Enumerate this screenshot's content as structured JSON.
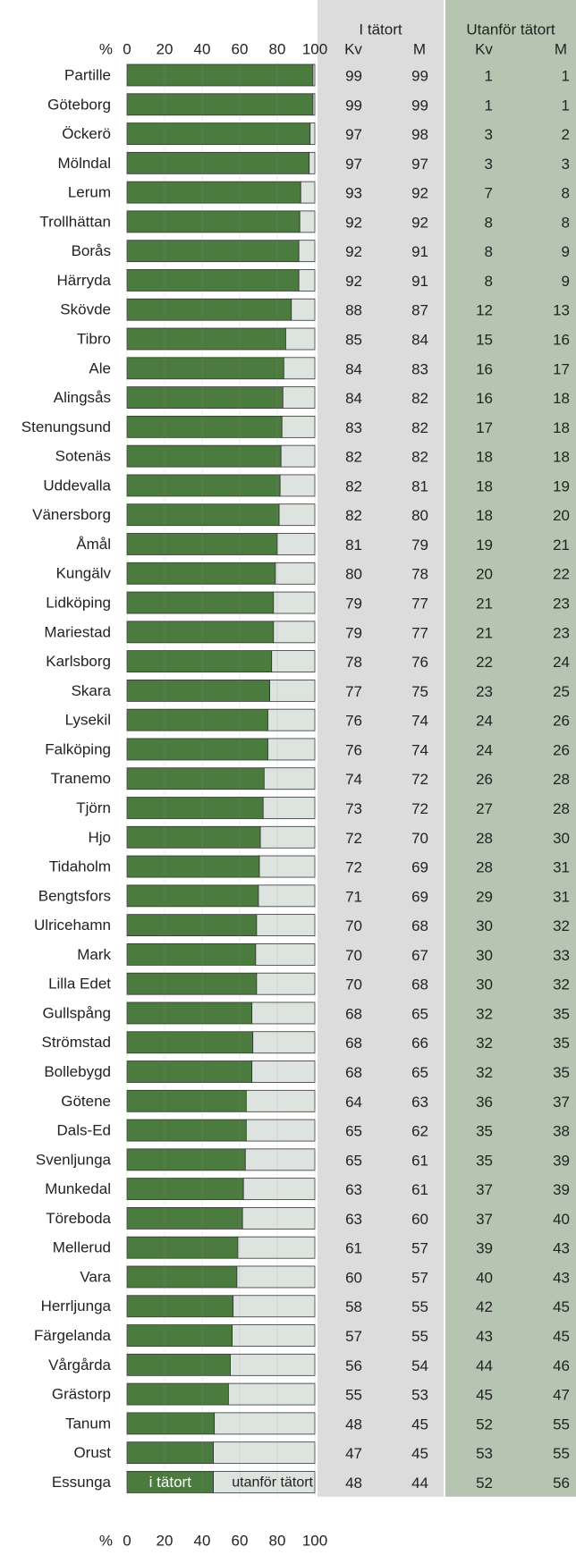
{
  "chart_data": {
    "type": "stacked_barh",
    "x_unit": "%",
    "categories": [
      "Partille",
      "Göteborg",
      "Öckerö",
      "Mölndal",
      "Lerum",
      "Trollhättan",
      "Borås",
      "Härryda",
      "Skövde",
      "Tibro",
      "Ale",
      "Alingsås",
      "Stenungsund",
      "Sotenäs",
      "Uddevalla",
      "Vänersborg",
      "Åmål",
      "Kungälv",
      "Lidköping",
      "Mariestad",
      "Karlsborg",
      "Skara",
      "Lysekil",
      "Falköping",
      "Tranemo",
      "Tjörn",
      "Hjo",
      "Tidaholm",
      "Bengtsfors",
      "Ulricehamn",
      "Mark",
      "Lilla Edet",
      "Gullspång",
      "Strömstad",
      "Bollebygd",
      "Götene",
      "Dals-Ed",
      "Svenljunga",
      "Munkedal",
      "Töreboda",
      "Mellerud",
      "Vara",
      "Herrljunga",
      "Färgelanda",
      "Vårgårda",
      "Grästorp",
      "Tanum",
      "Orust",
      "Essunga"
    ],
    "series": [
      {
        "name": "i tätort",
        "color": "#4b7b3f",
        "values": [
          99,
          99,
          97.5,
          97,
          92.5,
          92,
          91.5,
          91.5,
          87.5,
          84.5,
          83.5,
          83,
          82.5,
          82,
          81.5,
          81,
          80,
          79,
          78,
          78,
          77,
          76,
          75,
          75,
          73,
          72.5,
          71,
          70.5,
          70,
          69,
          68.5,
          69,
          66.5,
          67,
          66.5,
          63.5,
          63.5,
          63,
          62,
          61.5,
          59,
          58.5,
          56.5,
          56,
          55,
          54,
          46.5,
          46,
          46
        ]
      },
      {
        "name": "utanför tätort",
        "color": "#dde3de",
        "values": [
          1,
          1,
          2.5,
          3,
          7.5,
          8,
          8.5,
          8.5,
          12.5,
          15.5,
          16.5,
          17,
          17.5,
          18,
          18.5,
          19,
          20,
          21,
          22,
          22,
          23,
          24,
          25,
          25,
          27,
          27.5,
          29,
          29.5,
          30,
          31,
          31.5,
          31,
          33.5,
          33,
          33.5,
          36.5,
          36.5,
          37,
          38,
          38.5,
          41,
          41.5,
          43.5,
          44,
          45,
          46,
          53.5,
          54,
          54
        ]
      }
    ],
    "xlim": [
      0,
      100
    ],
    "xticks": [
      0,
      20,
      40,
      60,
      80,
      100
    ],
    "column_groups": [
      {
        "name": "I tätort",
        "color": "#dcdcdc",
        "columns": [
          {
            "name": "Kv",
            "values": [
              99,
              99,
              97,
              97,
              93,
              92,
              92,
              92,
              88,
              85,
              84,
              84,
              83,
              82,
              82,
              82,
              81,
              80,
              79,
              79,
              78,
              77,
              76,
              76,
              74,
              73,
              72,
              72,
              71,
              70,
              70,
              70,
              68,
              68,
              68,
              64,
              65,
              65,
              63,
              63,
              61,
              60,
              58,
              57,
              56,
              55,
              48,
              47,
              48
            ]
          },
          {
            "name": "M",
            "values": [
              99,
              99,
              98,
              97,
              92,
              92,
              91,
              91,
              87,
              84,
              83,
              82,
              82,
              82,
              81,
              80,
              79,
              78,
              77,
              77,
              76,
              75,
              74,
              74,
              72,
              72,
              70,
              69,
              69,
              68,
              67,
              68,
              65,
              66,
              65,
              63,
              62,
              61,
              61,
              60,
              57,
              57,
              55,
              55,
              54,
              53,
              45,
              45,
              44
            ]
          }
        ]
      },
      {
        "name": "Utanför tätort",
        "color": "#b6c5b2",
        "columns": [
          {
            "name": "Kv",
            "values": [
              1,
              1,
              3,
              3,
              7,
              8,
              8,
              8,
              12,
              15,
              16,
              16,
              17,
              18,
              18,
              18,
              19,
              20,
              21,
              21,
              22,
              23,
              24,
              24,
              26,
              27,
              28,
              28,
              29,
              30,
              30,
              30,
              32,
              32,
              32,
              36,
              35,
              35,
              37,
              37,
              39,
              40,
              42,
              43,
              44,
              45,
              52,
              53,
              52
            ]
          },
          {
            "name": "M",
            "values": [
              1,
              1,
              2,
              3,
              8,
              8,
              9,
              9,
              13,
              16,
              17,
              18,
              18,
              18,
              19,
              20,
              21,
              22,
              23,
              23,
              24,
              25,
              26,
              26,
              28,
              28,
              30,
              31,
              31,
              32,
              33,
              32,
              35,
              35,
              35,
              37,
              38,
              39,
              39,
              40,
              43,
              43,
              45,
              45,
              46,
              47,
              55,
              55,
              56
            ]
          }
        ]
      }
    ]
  }
}
